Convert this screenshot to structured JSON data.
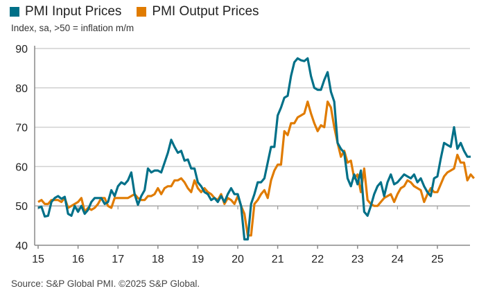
{
  "chart_data": {
    "type": "line",
    "subtitle": "Index, sa, >50 = inflation m/m",
    "source": "Source: S&P Global PMI. ©2025 S&P Global.",
    "x_start": "2015-01",
    "frequency": "monthly",
    "x_ticks": [
      "15",
      "16",
      "17",
      "18",
      "19",
      "20",
      "21",
      "22",
      "23",
      "24",
      "25"
    ],
    "y_ticks": [
      40,
      50,
      60,
      70,
      80,
      90
    ],
    "ylim": [
      40,
      90
    ],
    "grid": true,
    "legend_position": "top-left",
    "series": [
      {
        "name": "PMI Input Prices",
        "color": "#007088",
        "values": [
          49.5,
          49.8,
          47.3,
          47.5,
          51,
          52,
          52.5,
          51.8,
          52.3,
          48,
          47.5,
          50,
          48.5,
          50,
          48,
          49,
          51,
          52,
          52,
          52,
          50.5,
          51,
          54,
          52.5,
          55,
          56,
          55.5,
          56.5,
          58.5,
          53,
          50.3,
          52.5,
          54,
          59.5,
          58.5,
          59,
          59,
          58.5,
          61,
          63.5,
          66.8,
          65,
          63.5,
          64,
          61.5,
          61.8,
          59.5,
          59.5,
          56,
          55,
          53.5,
          53,
          51.5,
          52,
          51,
          52.5,
          51,
          53,
          54.5,
          53,
          53,
          50,
          41.5,
          41.5,
          50.5,
          53,
          56,
          56,
          57,
          61,
          65,
          65,
          73,
          75,
          77.5,
          78,
          83,
          86.5,
          87.5,
          87,
          86.8,
          87.5,
          83,
          80,
          79.5,
          79.5,
          82,
          84,
          79,
          76.5,
          66,
          64.5,
          63.5,
          57,
          55,
          58,
          55.5,
          59,
          48.5,
          47.5,
          50,
          53,
          55,
          56,
          52.5,
          56,
          58,
          55.5,
          56,
          57,
          58,
          57.5,
          57,
          58,
          56,
          57,
          55,
          53.5,
          52.5,
          57,
          57.5,
          62,
          66,
          65.5,
          65,
          70,
          64.5,
          66,
          64,
          62.5,
          62.5
        ]
      },
      {
        "name": "PMI Output Prices",
        "color": "#E07B00",
        "values": [
          51,
          51.5,
          50.5,
          50.5,
          51.5,
          51.5,
          51.5,
          51,
          52,
          49.5,
          50,
          50.5,
          51,
          52,
          48.5,
          49.5,
          49,
          49.5,
          50.5,
          52,
          52,
          50,
          49.5,
          52,
          52,
          52,
          52,
          52,
          52.5,
          53,
          52,
          51.5,
          51.5,
          52.5,
          52.5,
          53,
          54.5,
          53,
          54.5,
          55,
          55,
          56.5,
          56.5,
          57,
          56,
          54.5,
          53.5,
          56.5,
          54.5,
          53.5,
          54.5,
          53.5,
          53,
          52,
          51.5,
          53,
          50.5,
          52,
          51.5,
          50.5,
          52.5,
          50,
          48,
          42.5,
          42.5,
          50.5,
          51.5,
          53,
          54,
          52,
          56.5,
          59,
          60.5,
          60.5,
          69,
          68,
          71,
          71,
          72.5,
          73,
          73.5,
          76.5,
          73.5,
          71,
          69,
          70.5,
          70,
          76.5,
          75,
          70,
          66,
          62.5,
          64,
          61,
          61.5,
          57,
          58,
          53.5,
          59.5,
          51.5,
          50.5,
          50,
          50,
          51,
          52,
          52.5,
          53,
          51,
          53,
          54.5,
          55,
          56.5,
          56,
          55,
          54.5,
          54,
          51,
          53,
          54.5,
          53.5,
          53.5,
          55.5,
          57.5,
          58.5,
          59,
          59.5,
          63,
          61,
          61,
          56.5,
          58,
          57
        ]
      }
    ]
  }
}
